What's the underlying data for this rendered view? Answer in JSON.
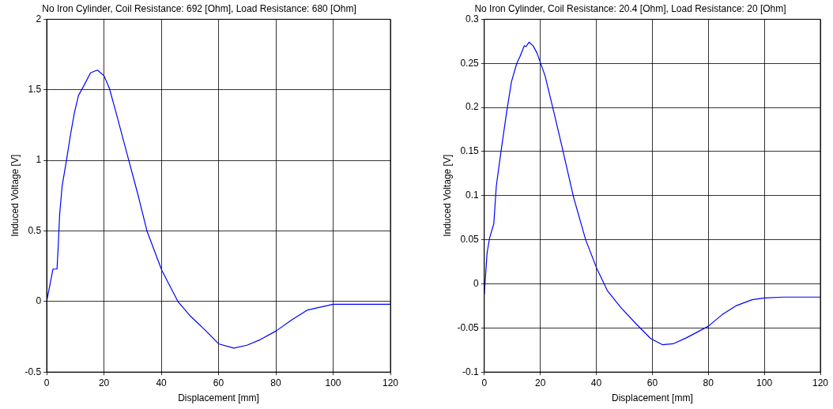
{
  "chart_data": [
    {
      "type": "line",
      "title": "No Iron Cylinder, Coil Resistance: 692 [Ohm], Load Resistance: 680 [Ohm]",
      "xlabel": "Displacement [mm]",
      "ylabel": "Induced Voltage [V]",
      "x": [
        0,
        2.2,
        3.6,
        4.0,
        4.5,
        5.4,
        6.9,
        8.3,
        9.7,
        11.1,
        13.0,
        15.3,
        17.7,
        20,
        21.9,
        24.2,
        28,
        31.7,
        35,
        40.2,
        45.8,
        50,
        55.2,
        60,
        65.3,
        69.9,
        74.6,
        80,
        85.6,
        91.1,
        100,
        104,
        120
      ],
      "series": [
        {
          "color": "#0000ff",
          "values": [
            0,
            0.23,
            0.23,
            0.38,
            0.61,
            0.82,
            1.0,
            1.18,
            1.34,
            1.46,
            1.53,
            1.62,
            1.64,
            1.6,
            1.51,
            1.34,
            1.05,
            0.77,
            0.5,
            0.22,
            0,
            -0.1,
            -0.2,
            -0.3,
            -0.33,
            -0.31,
            -0.27,
            -0.21,
            -0.13,
            -0.06,
            -0.02,
            -0.02,
            -0.02
          ]
        }
      ],
      "xlim": [
        0,
        120
      ],
      "xticks": [
        0,
        20,
        40,
        60,
        80,
        100,
        120
      ],
      "ylim": [
        -0.5,
        2
      ],
      "yticks": [
        -0.5,
        0,
        0.5,
        1,
        1.5,
        2
      ],
      "grid": true,
      "legend": false,
      "marker": "none",
      "line_style": "solid"
    },
    {
      "type": "line",
      "title": "No Iron Cylinder, Coil Resistance: 20.4 [Ohm], Load Resistance: 20 [Ohm]",
      "xlabel": "Displacement [mm]",
      "ylabel": "Induced Voltage [V]",
      "x": [
        0,
        1.0,
        1.9,
        3.4,
        4.3,
        6.1,
        8.0,
        9.7,
        11.6,
        12.8,
        14.3,
        14.9,
        16.0,
        17.4,
        18.8,
        21.7,
        24.6,
        27.5,
        31.9,
        36.2,
        40.1,
        44.0,
        48.8,
        54.1,
        59.4,
        63.6,
        67.4,
        72.3,
        80,
        84.9,
        89.8,
        95.6,
        100,
        107,
        120
      ],
      "series": [
        {
          "color": "#0000ff",
          "values": [
            -0.012,
            0.035,
            0.052,
            0.068,
            0.111,
            0.153,
            0.195,
            0.229,
            0.25,
            0.258,
            0.27,
            0.269,
            0.274,
            0.27,
            0.262,
            0.236,
            0.198,
            0.159,
            0.098,
            0.05,
            0.018,
            -0.008,
            -0.027,
            -0.045,
            -0.062,
            -0.069,
            -0.068,
            -0.061,
            -0.048,
            -0.035,
            -0.025,
            -0.018,
            -0.016,
            -0.015,
            -0.015
          ]
        }
      ],
      "xlim": [
        0,
        120
      ],
      "xticks": [
        0,
        20,
        40,
        60,
        80,
        100,
        120
      ],
      "ylim": [
        -0.1,
        0.3
      ],
      "yticks": [
        -0.1,
        -0.05,
        0,
        0.05,
        0.1,
        0.15,
        0.2,
        0.25,
        0.3
      ],
      "grid": true,
      "legend": false,
      "marker": "none",
      "line_style": "solid"
    }
  ]
}
